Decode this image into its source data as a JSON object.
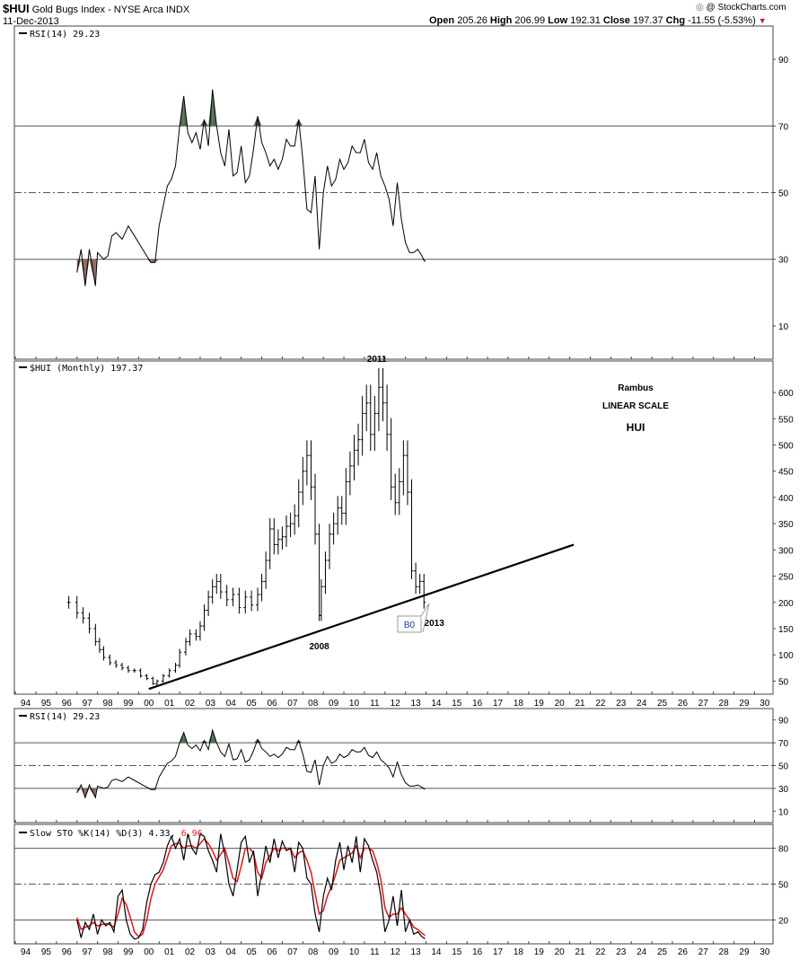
{
  "header": {
    "symbol": "$HUI",
    "name": "Gold Bugs Index - NYSE Arca  INDX",
    "date": "11-Dec-2013",
    "copyright": "@ StockCharts.com",
    "ohlc": {
      "open_label": "Open",
      "open": "205.26",
      "high_label": "High",
      "high": "206.99",
      "low_label": "Low",
      "low": "192.31",
      "close_label": "Close",
      "close": "197.37",
      "chg_label": "Chg",
      "chg": "-11.55 (-5.53%)"
    }
  },
  "colors": {
    "price": "#000000",
    "rsi_line": "#000000",
    "oversold_fill": "#8b6b62",
    "overbought_fill": "#4f6e4f",
    "stoch_d": "#e02020",
    "gridline": "#555555",
    "callout_text": "#1a3aa0"
  },
  "annotations": {
    "year_2011": "2011",
    "year_2008": "2008",
    "year_2013": "2013",
    "author": "Rambus",
    "scale": "LINEAR SCALE",
    "ticker": "HUI",
    "callout": "B0"
  },
  "x_tick_labels": [
    "94",
    "95",
    "96",
    "97",
    "98",
    "99",
    "00",
    "01",
    "02",
    "03",
    "04",
    "05",
    "06",
    "07",
    "08",
    "09",
    "10",
    "11",
    "12",
    "13",
    "14",
    "15",
    "16",
    "17",
    "18",
    "19",
    "20",
    "21",
    "22",
    "23",
    "24",
    "25",
    "26",
    "27",
    "28",
    "29",
    "30"
  ],
  "chart_data": [
    {
      "type": "line",
      "panel": "top",
      "legend": "RSI(14) 29.23",
      "ylim": [
        0,
        100
      ],
      "yticks": [
        90,
        70,
        50,
        30,
        10
      ],
      "reference_lines": [
        {
          "y": 70,
          "style": "solid"
        },
        {
          "y": 50,
          "style": "dashed"
        },
        {
          "y": 30,
          "style": "solid"
        }
      ],
      "series": [
        {
          "x": [
            1997.0,
            1997.2,
            1997.4,
            1997.6,
            1997.9,
            1998.0,
            1998.3,
            1998.5,
            1998.7,
            1998.9,
            1999.2,
            1999.5,
            1999.8,
            2000.1,
            2000.4,
            2000.6,
            2000.8,
            2001.0,
            2001.2,
            2001.4,
            2001.6,
            2001.8,
            2002.0,
            2002.2,
            2002.4,
            2002.6,
            2002.8,
            2003.0,
            2003.2,
            2003.4,
            2003.6,
            2003.8,
            2004.0,
            2004.2,
            2004.4,
            2004.6,
            2004.8,
            2005.0,
            2005.2,
            2005.4,
            2005.6,
            2005.8,
            2006.0,
            2006.2,
            2006.4,
            2006.6,
            2006.8,
            2007.0,
            2007.2,
            2007.4,
            2007.6,
            2007.8,
            2008.0,
            2008.2,
            2008.4,
            2008.6,
            2008.8,
            2009.0,
            2009.2,
            2009.4,
            2009.6,
            2009.8,
            2010.0,
            2010.2,
            2010.4,
            2010.6,
            2010.8,
            2011.0,
            2011.2,
            2011.4,
            2011.6,
            2011.8,
            2012.0,
            2012.2,
            2012.4,
            2012.6,
            2012.8,
            2013.0,
            2013.2,
            2013.4,
            2013.6,
            2013.8,
            2013.95
          ],
          "values": [
            26,
            33,
            22,
            33,
            22,
            32,
            30,
            31,
            37,
            38,
            36,
            40,
            37,
            34,
            31,
            29,
            29,
            40,
            46,
            52,
            54,
            58,
            70,
            79,
            68,
            65,
            68,
            63,
            72,
            64,
            81,
            70,
            62,
            58,
            69,
            55,
            56,
            64,
            53,
            55,
            63,
            73,
            65,
            62,
            58,
            60,
            57,
            60,
            66,
            64,
            64,
            72,
            60,
            45,
            44,
            55,
            33,
            50,
            58,
            52,
            54,
            60,
            57,
            59,
            64,
            62,
            62,
            66,
            59,
            57,
            62,
            55,
            52,
            48,
            40,
            53,
            42,
            35,
            32,
            32,
            33,
            31,
            29.23
          ]
        }
      ]
    },
    {
      "type": "ohlc",
      "panel": "main",
      "legend": "$HUI (Monthly) 197.37",
      "ylim": [
        25,
        660
      ],
      "yticks": [
        600,
        550,
        500,
        450,
        400,
        350,
        300,
        250,
        200,
        150,
        100,
        50
      ],
      "trendline": {
        "x": [
          2000.5,
          2021.2
        ],
        "y": [
          35,
          310
        ]
      },
      "series": [
        {
          "x": [
            1996.6,
            1997.0,
            1997.3,
            1997.6,
            1997.9,
            1998.1,
            1998.3,
            1998.6,
            1998.9,
            1999.2,
            1999.5,
            1999.8,
            2000.1,
            2000.4,
            2000.7,
            2000.9,
            2001.2,
            2001.5,
            2001.8,
            2002.0,
            2002.3,
            2002.5,
            2002.8,
            2003.0,
            2003.2,
            2003.4,
            2003.6,
            2003.8,
            2004.0,
            2004.3,
            2004.6,
            2004.9,
            2005.2,
            2005.5,
            2005.8,
            2006.0,
            2006.2,
            2006.4,
            2006.6,
            2006.8,
            2007.0,
            2007.2,
            2007.4,
            2007.6,
            2007.8,
            2008.0,
            2008.2,
            2008.4,
            2008.6,
            2008.8,
            2008.9,
            2009.1,
            2009.3,
            2009.5,
            2009.7,
            2009.9,
            2010.1,
            2010.3,
            2010.5,
            2010.7,
            2010.9,
            2011.1,
            2011.3,
            2011.5,
            2011.7,
            2011.9,
            2012.1,
            2012.3,
            2012.5,
            2012.7,
            2012.9,
            2013.1,
            2013.3,
            2013.5,
            2013.7,
            2013.9
          ],
          "values": [
            200,
            180,
            170,
            150,
            125,
            110,
            95,
            85,
            80,
            75,
            70,
            70,
            60,
            55,
            45,
            50,
            60,
            70,
            80,
            105,
            125,
            140,
            135,
            155,
            185,
            210,
            230,
            240,
            220,
            205,
            215,
            190,
            210,
            195,
            215,
            240,
            280,
            340,
            310,
            320,
            325,
            345,
            350,
            365,
            410,
            450,
            480,
            420,
            330,
            175,
            230,
            280,
            330,
            350,
            380,
            370,
            430,
            460,
            490,
            510,
            560,
            580,
            520,
            560,
            610,
            580,
            520,
            420,
            390,
            430,
            480,
            410,
            260,
            230,
            240,
            200
          ]
        }
      ]
    },
    {
      "type": "line",
      "panel": "rsi-small",
      "legend": "RSI(14) 29.23",
      "ylim": [
        0,
        100
      ],
      "yticks": [
        90,
        70,
        50,
        30,
        10
      ],
      "reference_lines": [
        {
          "y": 70,
          "style": "solid"
        },
        {
          "y": 50,
          "style": "dashed"
        },
        {
          "y": 30,
          "style": "solid"
        }
      ]
    },
    {
      "type": "line",
      "panel": "stochastic",
      "legend": "Slow STO %K(14) %D(3) 4.33, 6.96",
      "legend_parts": {
        "prefix": "Slow STO %K(14) %D(3) 4.33, ",
        "d_value": "6.96"
      },
      "ylim": [
        0,
        100
      ],
      "yticks": [
        80,
        50,
        20
      ],
      "reference_lines": [
        {
          "y": 80,
          "style": "solid"
        },
        {
          "y": 50,
          "style": "dashed"
        },
        {
          "y": 20,
          "style": "solid"
        }
      ],
      "series": [
        {
          "name": "%K",
          "x": [
            1997.0,
            1997.2,
            1997.4,
            1997.6,
            1997.8,
            1998.0,
            1998.2,
            1998.4,
            1998.6,
            1998.8,
            1999.0,
            1999.2,
            1999.4,
            1999.6,
            1999.8,
            2000.0,
            2000.2,
            2000.4,
            2000.6,
            2000.8,
            2001.0,
            2001.2,
            2001.4,
            2001.6,
            2001.8,
            2002.0,
            2002.2,
            2002.4,
            2002.6,
            2002.8,
            2003.0,
            2003.2,
            2003.4,
            2003.6,
            2003.8,
            2004.0,
            2004.2,
            2004.4,
            2004.6,
            2004.8,
            2005.0,
            2005.2,
            2005.4,
            2005.6,
            2005.8,
            2006.0,
            2006.2,
            2006.4,
            2006.6,
            2006.8,
            2007.0,
            2007.2,
            2007.4,
            2007.6,
            2007.8,
            2008.0,
            2008.2,
            2008.4,
            2008.6,
            2008.8,
            2009.0,
            2009.2,
            2009.4,
            2009.6,
            2009.8,
            2010.0,
            2010.2,
            2010.4,
            2010.6,
            2010.8,
            2011.0,
            2011.2,
            2011.4,
            2011.6,
            2011.8,
            2012.0,
            2012.2,
            2012.4,
            2012.6,
            2012.8,
            2013.0,
            2013.2,
            2013.4,
            2013.6,
            2013.8,
            2013.95
          ],
          "values": [
            20,
            5,
            18,
            12,
            25,
            8,
            20,
            15,
            18,
            10,
            40,
            45,
            20,
            8,
            4,
            5,
            12,
            35,
            50,
            58,
            60,
            68,
            82,
            90,
            80,
            88,
            70,
            92,
            80,
            75,
            92,
            90,
            78,
            70,
            60,
            92,
            75,
            50,
            40,
            62,
            85,
            90,
            68,
            78,
            40,
            60,
            82,
            68,
            88,
            72,
            86,
            78,
            80,
            60,
            85,
            80,
            55,
            50,
            25,
            10,
            40,
            55,
            45,
            70,
            85,
            62,
            82,
            68,
            90,
            60,
            88,
            82,
            70,
            60,
            40,
            10,
            20,
            40,
            15,
            45,
            10,
            20,
            8,
            10,
            6,
            4.33
          ]
        },
        {
          "name": "%D",
          "x": [
            1997.0,
            1997.2,
            1997.4,
            1997.6,
            1997.8,
            1998.0,
            1998.2,
            1998.4,
            1998.6,
            1998.8,
            1999.0,
            1999.2,
            1999.4,
            1999.6,
            1999.8,
            2000.0,
            2000.2,
            2000.4,
            2000.6,
            2000.8,
            2001.0,
            2001.2,
            2001.4,
            2001.6,
            2001.8,
            2002.0,
            2002.2,
            2002.4,
            2002.6,
            2002.8,
            2003.0,
            2003.2,
            2003.4,
            2003.6,
            2003.8,
            2004.0,
            2004.2,
            2004.4,
            2004.6,
            2004.8,
            2005.0,
            2005.2,
            2005.4,
            2005.6,
            2005.8,
            2006.0,
            2006.2,
            2006.4,
            2006.6,
            2006.8,
            2007.0,
            2007.2,
            2007.4,
            2007.6,
            2007.8,
            2008.0,
            2008.2,
            2008.4,
            2008.6,
            2008.8,
            2009.0,
            2009.2,
            2009.4,
            2009.6,
            2009.8,
            2010.0,
            2010.2,
            2010.4,
            2010.6,
            2010.8,
            2011.0,
            2011.2,
            2011.4,
            2011.6,
            2011.8,
            2012.0,
            2012.2,
            2012.4,
            2012.6,
            2012.8,
            2013.0,
            2013.2,
            2013.4,
            2013.6,
            2013.8,
            2013.95
          ],
          "values": [
            22,
            12,
            14,
            15,
            18,
            15,
            16,
            17,
            16,
            14,
            25,
            38,
            33,
            22,
            10,
            6,
            8,
            20,
            38,
            50,
            56,
            62,
            72,
            82,
            84,
            84,
            80,
            82,
            82,
            80,
            84,
            88,
            84,
            78,
            70,
            75,
            80,
            68,
            55,
            52,
            65,
            80,
            80,
            76,
            60,
            55,
            68,
            74,
            80,
            78,
            80,
            80,
            80,
            72,
            76,
            78,
            70,
            60,
            42,
            25,
            28,
            40,
            48,
            58,
            70,
            72,
            74,
            76,
            82,
            72,
            80,
            80,
            78,
            68,
            54,
            30,
            22,
            25,
            25,
            30,
            25,
            20,
            14,
            12,
            9,
            6.96
          ]
        }
      ]
    }
  ]
}
